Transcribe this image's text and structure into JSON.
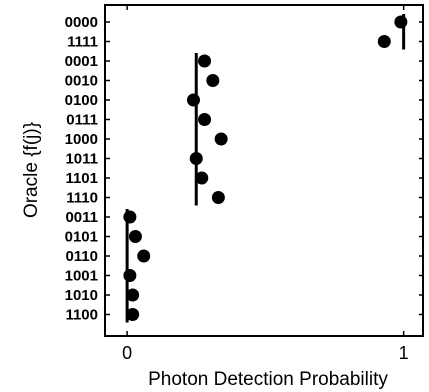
{
  "chart_data": {
    "type": "scatter",
    "xlabel": "Photon Detection Probability",
    "ylabel": "Oracle {f(j)}",
    "xlim": [
      -0.08,
      1.07
    ],
    "xticks": [
      0,
      1
    ],
    "xtick_labels": [
      "0",
      "1"
    ],
    "categories": [
      "0000",
      "1111",
      "0001",
      "0010",
      "0100",
      "0111",
      "1000",
      "1011",
      "1101",
      "1110",
      "0011",
      "0101",
      "0110",
      "1001",
      "1010",
      "1100"
    ],
    "values": [
      0.99,
      0.93,
      0.28,
      0.31,
      0.24,
      0.28,
      0.34,
      0.25,
      0.27,
      0.33,
      0.01,
      0.03,
      0.06,
      0.01,
      0.02,
      0.02
    ],
    "reference_lines": [
      {
        "x": 1.0,
        "from": "0000",
        "to": "1111"
      },
      {
        "x": 0.25,
        "from": "0001",
        "to": "1110"
      },
      {
        "x": 0.0,
        "from": "0011",
        "to": "1100"
      }
    ],
    "grid": false,
    "legend": "none"
  }
}
